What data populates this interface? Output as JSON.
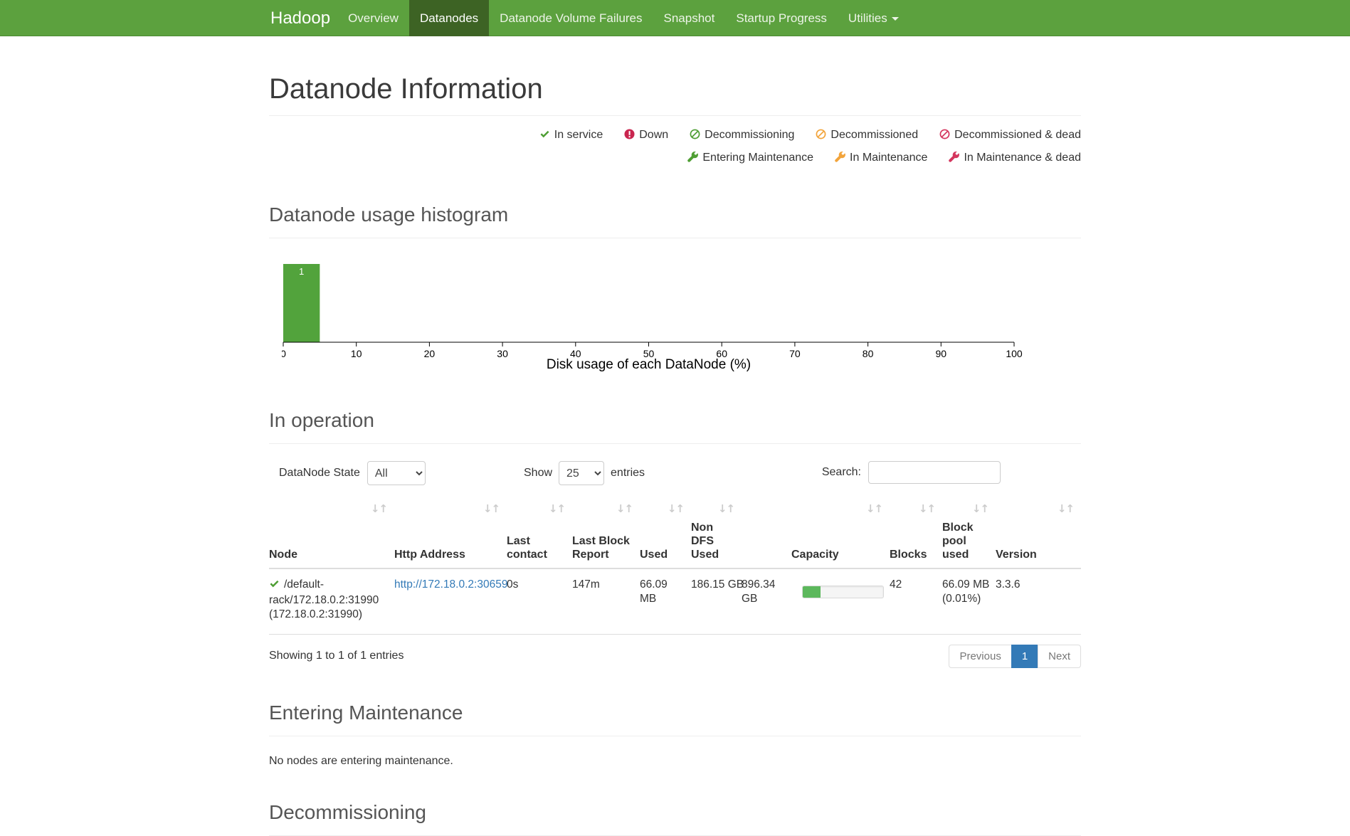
{
  "navbar": {
    "brand": "Hadoop",
    "items": [
      {
        "label": "Overview",
        "active": false,
        "caret": false
      },
      {
        "label": "Datanodes",
        "active": true,
        "caret": false
      },
      {
        "label": "Datanode Volume Failures",
        "active": false,
        "caret": false
      },
      {
        "label": "Snapshot",
        "active": false,
        "caret": false
      },
      {
        "label": "Startup Progress",
        "active": false,
        "caret": false
      },
      {
        "label": "Utilities",
        "active": false,
        "caret": true
      }
    ]
  },
  "page": {
    "title": "Datanode Information"
  },
  "legend": {
    "rows": [
      [
        {
          "icon": "check",
          "color": "#4E9E33",
          "label": "In service"
        },
        {
          "icon": "exclamation-circle",
          "color": "#C9254F",
          "label": "Down"
        },
        {
          "icon": "ban",
          "color": "#4E9E33",
          "label": "Decommissioning"
        },
        {
          "icon": "ban",
          "color": "#F2A43B",
          "label": "Decommissioned"
        },
        {
          "icon": "ban",
          "color": "#D4365E",
          "label": "Decommissioned & dead"
        }
      ],
      [
        {
          "icon": "wrench",
          "color": "#4E9E33",
          "label": "Entering Maintenance"
        },
        {
          "icon": "wrench",
          "color": "#F2A43B",
          "label": "In Maintenance"
        },
        {
          "icon": "wrench",
          "color": "#D4365E",
          "label": "In Maintenance & dead"
        }
      ]
    ]
  },
  "sections": {
    "histogram_title": "Datanode usage histogram",
    "in_operation_title": "In operation",
    "entering_maintenance_title": "Entering Maintenance",
    "entering_maintenance_empty": "No nodes are entering maintenance.",
    "decommissioning_title": "Decommissioning"
  },
  "chart_data": {
    "type": "bar",
    "title": "",
    "xlabel": "Disk usage of each DataNode (%)",
    "ylabel": "",
    "xlim": [
      0,
      100
    ],
    "x_ticks": [
      0,
      10,
      20,
      30,
      40,
      50,
      60,
      70,
      80,
      90,
      100
    ],
    "bins": [
      {
        "x0": 0,
        "x1": 5,
        "count": 1
      }
    ],
    "bar_color": "#52A33C",
    "bar_label_color": "#ffffff",
    "grid": false,
    "legend": "none"
  },
  "controls": {
    "state_label": "DataNode State",
    "state_value": "All",
    "show_label": "Show",
    "show_value": "25",
    "entries_label": "entries",
    "search_label": "Search:",
    "search_value": ""
  },
  "table": {
    "columns": [
      {
        "label": "Node"
      },
      {
        "label": "Http Address"
      },
      {
        "label": "Last contact"
      },
      {
        "label": "Last Block Report"
      },
      {
        "label": "Used"
      },
      {
        "label": "Non DFS Used"
      },
      {
        "label": "Capacity"
      },
      {
        "label": "Blocks"
      },
      {
        "label": "Block pool used"
      },
      {
        "label": "Version"
      }
    ],
    "rows": [
      {
        "state_icon": "check",
        "state_icon_color": "#4E9E33",
        "node": "/default-rack/172.18.0.2:31990 (172.18.0.2:31990)",
        "http_address": "http://172.18.0.2:30659",
        "last_contact": "0s",
        "last_block_report": "147m",
        "used": "66.09 MB",
        "non_dfs_used": "186.15 GB",
        "capacity": "896.34 GB",
        "capacity_used_pct": 22,
        "blocks": "42",
        "block_pool_used": "66.09 MB (0.01%)",
        "version": "3.3.6"
      }
    ],
    "summary": "Showing 1 to 1 of 1 entries"
  },
  "pagination": {
    "previous": "Previous",
    "page": "1",
    "next": "Next"
  },
  "colors": {
    "navbar_bg": "#5CA13E",
    "navbar_active_bg": "#3D6324",
    "link": "#337ab7",
    "pagination_active_bg": "#337ab7",
    "progress_fill": "#5cb85c"
  }
}
